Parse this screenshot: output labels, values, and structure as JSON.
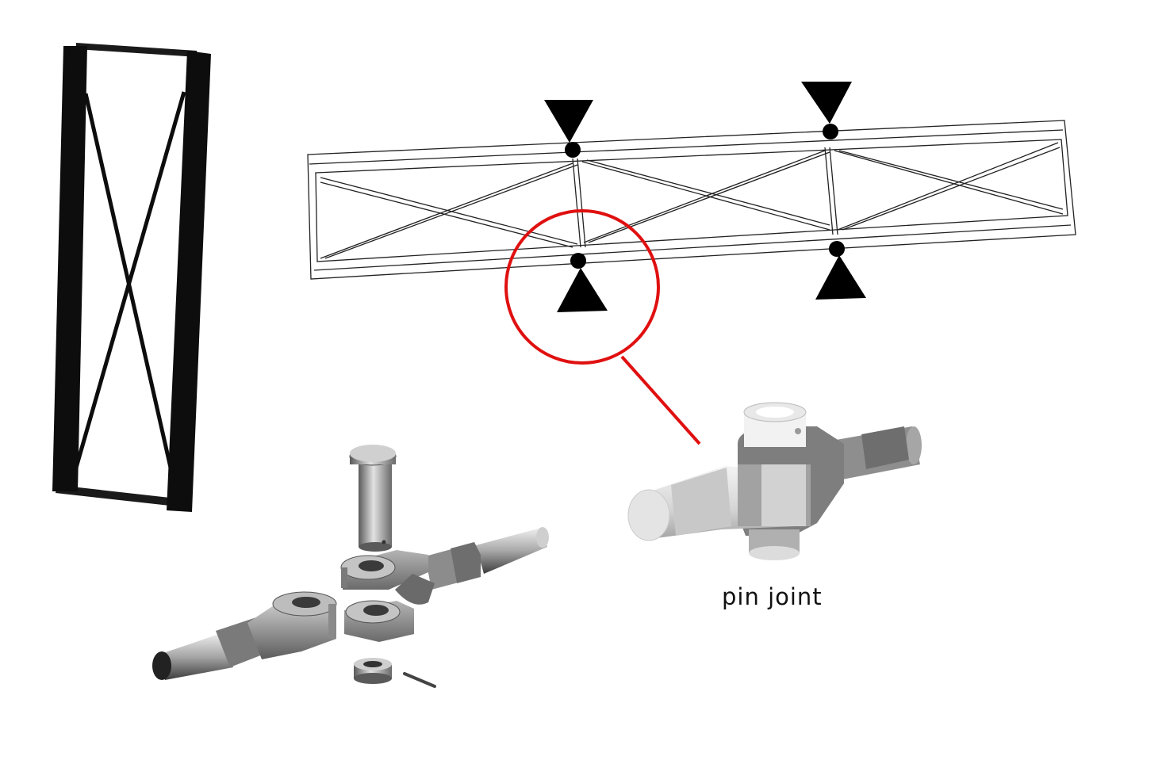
{
  "caption": {
    "pin_joint": "pin joint"
  },
  "colors": {
    "frame_black": "#0d0d0d",
    "highlight_red": "#e01010",
    "metal_light": "#d8d8d8",
    "metal_mid": "#9a9a9a",
    "metal_dark": "#4a4a4a",
    "collar_white": "#f2f2f2"
  },
  "icons": {
    "support_up": "triangle-up-icon",
    "support_down": "triangle-down-icon",
    "pin_node": "pin-node-icon"
  }
}
